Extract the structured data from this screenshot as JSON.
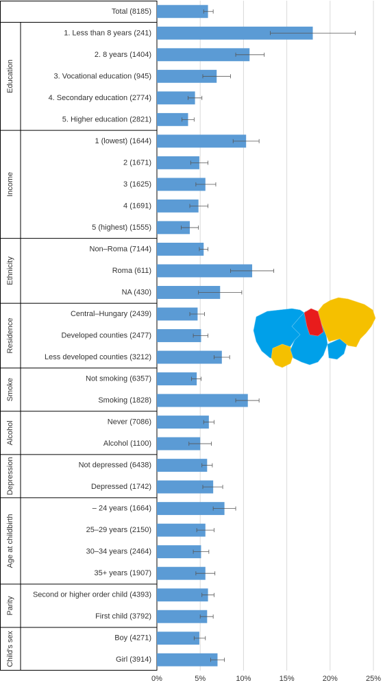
{
  "chart_data": {
    "type": "bar",
    "orientation": "horizontal",
    "title": "",
    "xlabel": "",
    "ylabel": "",
    "xlim": [
      0,
      25
    ],
    "x_ticks": [
      "0%",
      "5%",
      "10%",
      "15%",
      "20%",
      "25%"
    ],
    "grid": "vertical",
    "bar_color": "#5b9bd5",
    "groups": [
      {
        "label": "",
        "items": [
          {
            "label": "Total (8185)",
            "value": 5.9,
            "err_low": 5.4,
            "err_high": 6.5
          }
        ]
      },
      {
        "label": "Education",
        "items": [
          {
            "label": "1. Less than 8 years (241)",
            "value": 18.0,
            "err_low": 13.1,
            "err_high": 22.9
          },
          {
            "label": "2. 8 years (1404)",
            "value": 10.7,
            "err_low": 9.1,
            "err_high": 12.4
          },
          {
            "label": "3. Vocational education (945)",
            "value": 6.9,
            "err_low": 5.3,
            "err_high": 8.5
          },
          {
            "label": "4. Secondary education (2774)",
            "value": 4.4,
            "err_low": 3.6,
            "err_high": 5.2
          },
          {
            "label": "5. Higher education (2821)",
            "value": 3.6,
            "err_low": 2.9,
            "err_high": 4.3
          }
        ]
      },
      {
        "label": "Income",
        "items": [
          {
            "label": "1 (lowest) (1644)",
            "value": 10.3,
            "err_low": 8.8,
            "err_high": 11.8
          },
          {
            "label": "2 (1671)",
            "value": 4.9,
            "err_low": 3.9,
            "err_high": 5.9
          },
          {
            "label": "3 (1625)",
            "value": 5.6,
            "err_low": 4.5,
            "err_high": 6.8
          },
          {
            "label": "4 (1691)",
            "value": 4.8,
            "err_low": 3.8,
            "err_high": 5.9
          },
          {
            "label": "5 (highest) (1555)",
            "value": 3.8,
            "err_low": 2.8,
            "err_high": 4.8
          }
        ]
      },
      {
        "label": "Ethnicity",
        "items": [
          {
            "label": "Non–Roma (7144)",
            "value": 5.4,
            "err_low": 4.9,
            "err_high": 5.9
          },
          {
            "label": "Roma (611)",
            "value": 11.0,
            "err_low": 8.5,
            "err_high": 13.5
          },
          {
            "label": "NA (430)",
            "value": 7.3,
            "err_low": 4.8,
            "err_high": 9.8
          }
        ]
      },
      {
        "label": "Residence",
        "items": [
          {
            "label": "Central–Hungary (2439)",
            "value": 4.7,
            "err_low": 3.8,
            "err_high": 5.5
          },
          {
            "label": "Developed counties (2477)",
            "value": 5.1,
            "err_low": 4.2,
            "err_high": 5.9
          },
          {
            "label": "Less developed counties (3212)",
            "value": 7.5,
            "err_low": 6.6,
            "err_high": 8.4
          }
        ]
      },
      {
        "label": "Smoke",
        "items": [
          {
            "label": "Not smoking (6357)",
            "value": 4.6,
            "err_low": 4.0,
            "err_high": 5.1
          },
          {
            "label": "Smoking (1828)",
            "value": 10.5,
            "err_low": 9.1,
            "err_high": 11.8
          }
        ]
      },
      {
        "label": "Alcohol",
        "items": [
          {
            "label": "Never (7086)",
            "value": 6.0,
            "err_low": 5.4,
            "err_high": 6.6
          },
          {
            "label": "Alcohol (1100)",
            "value": 5.0,
            "err_low": 3.7,
            "err_high": 6.3
          }
        ]
      },
      {
        "label": "Depression",
        "items": [
          {
            "label": "Not depressed (6438)",
            "value": 5.8,
            "err_low": 5.2,
            "err_high": 6.4
          },
          {
            "label": "Depressed (1742)",
            "value": 6.5,
            "err_low": 5.3,
            "err_high": 7.6
          }
        ]
      },
      {
        "label": "Age at childbirth",
        "items": [
          {
            "label": "– 24 years (1664)",
            "value": 7.8,
            "err_low": 6.5,
            "err_high": 9.1
          },
          {
            "label": "25–29 years (2150)",
            "value": 5.6,
            "err_low": 4.6,
            "err_high": 6.6
          },
          {
            "label": "30–34 years (2464)",
            "value": 5.1,
            "err_low": 4.2,
            "err_high": 6.0
          },
          {
            "label": "35+ years (1907)",
            "value": 5.6,
            "err_low": 4.5,
            "err_high": 6.7
          }
        ]
      },
      {
        "label": "Parity",
        "items": [
          {
            "label": "Second or higher order child (4393)",
            "value": 5.9,
            "err_low": 5.2,
            "err_high": 6.6
          },
          {
            "label": "First child (3792)",
            "value": 5.8,
            "err_low": 5.0,
            "err_high": 6.5
          }
        ]
      },
      {
        "label": "Child's sex",
        "items": [
          {
            "label": "Boy (4271)",
            "value": 4.9,
            "err_low": 4.3,
            "err_high": 5.6
          },
          {
            "label": "Girl (3914)",
            "value": 7.0,
            "err_low": 6.2,
            "err_high": 7.8
          }
        ]
      }
    ]
  },
  "map": {
    "legend": "none",
    "colors": {
      "central_hungary": "#00a0e9",
      "budapest": "#e81c1c",
      "less_developed": "#f5c000",
      "developed": "#00a0e9"
    }
  }
}
